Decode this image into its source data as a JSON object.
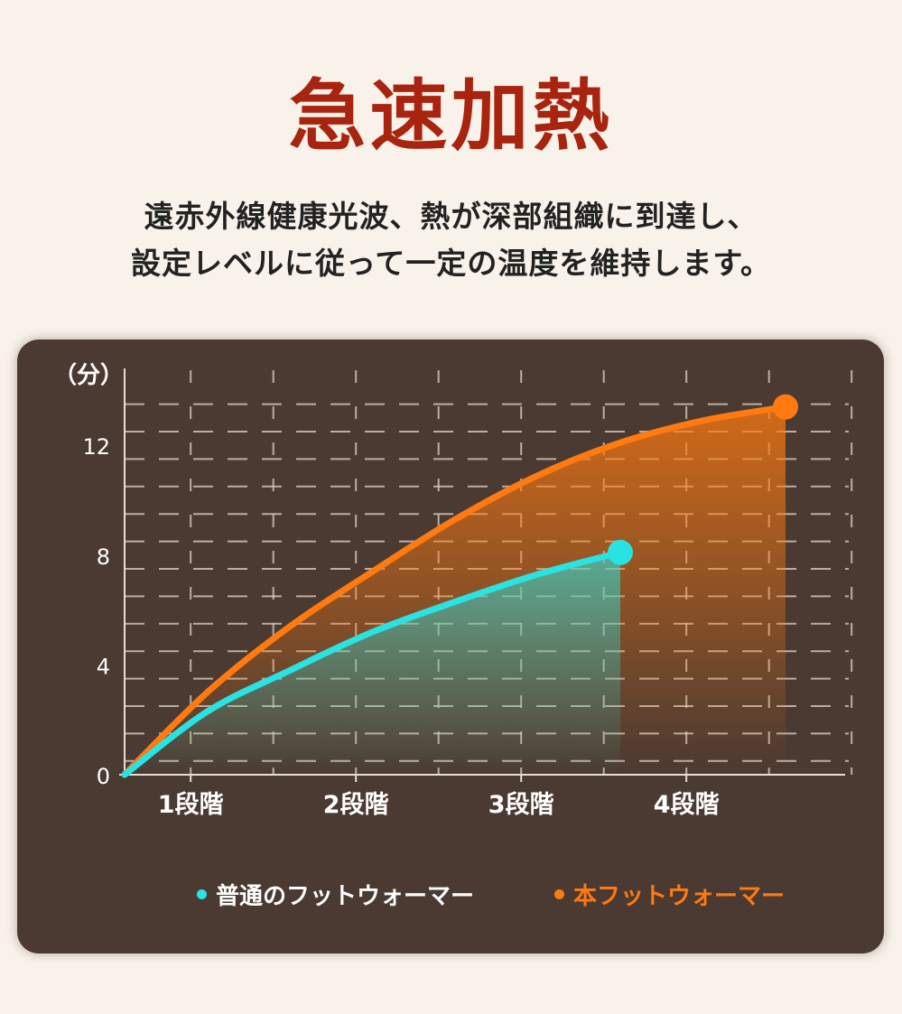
{
  "header": {
    "title": "急速加熱",
    "subtitle_line1": "遠赤外線健康光波、熱が深部組織に到達し、",
    "subtitle_line2": "設定レベルに従って一定の温度を維持します。"
  },
  "chart_data": {
    "type": "line",
    "ylabel": "（分）",
    "categories": [
      "1段階",
      "2段階",
      "3段階",
      "4段階"
    ],
    "yticks": [
      0,
      4,
      8,
      12
    ],
    "ylim": [
      0,
      14
    ],
    "xlim": [
      0,
      4.4
    ],
    "grid": true,
    "legend_position": "bottom",
    "series": [
      {
        "name": "普通のフットウォーマー",
        "color": "#29e3e3",
        "points": [
          [
            0,
            0
          ],
          [
            0.5,
            2.3
          ],
          [
            1,
            3.8
          ],
          [
            1.5,
            5.2
          ],
          [
            2,
            6.3
          ],
          [
            2.5,
            7.3
          ],
          [
            3,
            8.1
          ]
        ]
      },
      {
        "name": "本フットウォーマー",
        "color": "#ff7a10",
        "points": [
          [
            0,
            0
          ],
          [
            0.5,
            3.0
          ],
          [
            1,
            5.4
          ],
          [
            1.5,
            7.4
          ],
          [
            2,
            9.3
          ],
          [
            2.5,
            10.9
          ],
          [
            3,
            12.1
          ],
          [
            3.5,
            12.9
          ],
          [
            4,
            13.4
          ]
        ]
      }
    ]
  }
}
